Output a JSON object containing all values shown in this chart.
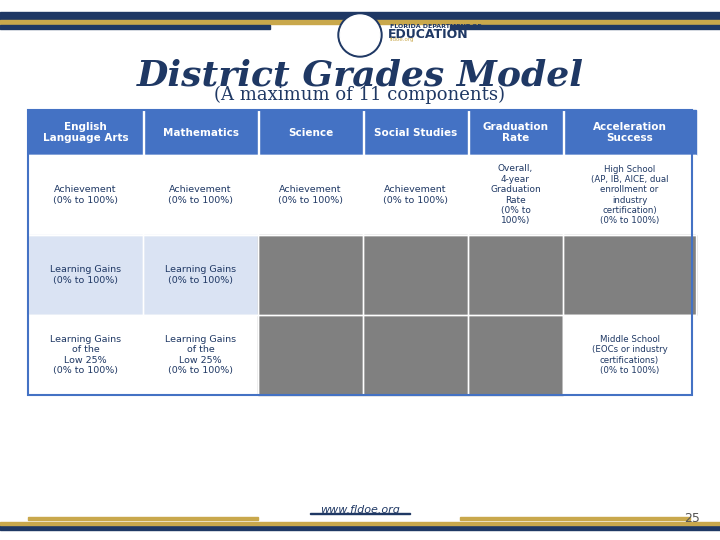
{
  "title": "District Grades Model",
  "subtitle": "(A maximum of 11 components)",
  "title_color": "#1F3864",
  "subtitle_color": "#1F3864",
  "header_bg": "#4472C4",
  "header_text_color": "#FFFFFF",
  "row1_bg": "#FFFFFF",
  "row2_bg": "#DAE3F3",
  "row3_bg": "#FFFFFF",
  "gray_fill": "#808080",
  "light_blue_row2": "#DAE3F3",
  "light_blue_row3": "#FFFFFF",
  "headers": [
    "English\nLanguage Arts",
    "Mathematics",
    "Science",
    "Social Studies",
    "Graduation\nRate",
    "Acceleration\nSuccess"
  ],
  "row1": [
    "Achievement\n(0% to 100%)",
    "Achievement\n(0% to 100%)",
    "Achievement\n(0% to 100%)",
    "Achievement\n(0% to 100%)",
    "Overall,\n4-year\nGraduation\nRate\n(0% to\n100%)",
    "High School\n(AP, IB, AICE, dual\nenrollment or\nindustry\ncertification)\n(0% to 100%)"
  ],
  "row2": [
    "Learning Gains\n(0% to 100%)",
    "Learning Gains\n(0% to 100%)",
    "GRAY",
    "GRAY",
    "GRAY",
    "GRAY"
  ],
  "row3": [
    "Learning Gains\nof the\nLow 25%\n(0% to 100%)",
    "Learning Gains\nof the\nLow 25%\n(0% to 100%)",
    "GRAY",
    "GRAY",
    "GRAY",
    "Middle School\n(EOCs or industry\ncertifications)\n(0% to 100%)"
  ],
  "footer_url": "www.fldoe.org",
  "page_number": "25",
  "top_bar_color": "#1F3864",
  "gold_bar_color": "#C9A84C",
  "bottom_bar_color_blue": "#1F3864",
  "bottom_bar_color_gold": "#C9A84C",
  "bg_color": "#FFFFFF"
}
